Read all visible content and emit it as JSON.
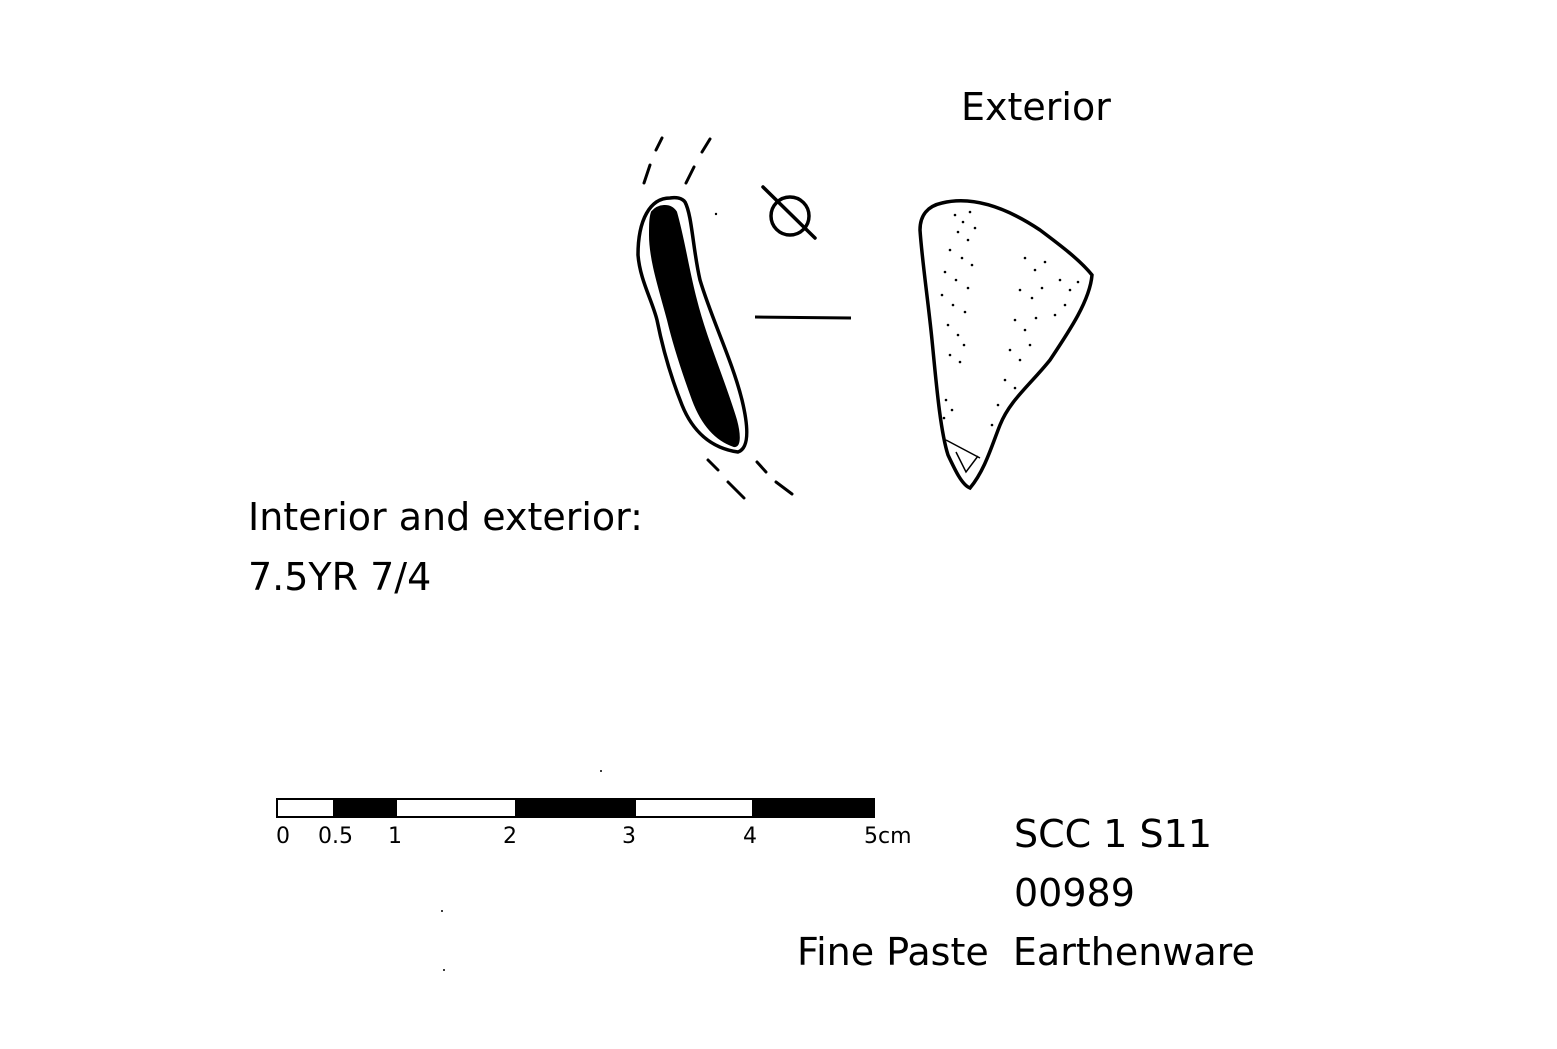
{
  "labels": {
    "exterior": "Exterior",
    "colour_heading": "Interior and exterior:",
    "colour_value": "7.5YR 7/4"
  },
  "scale_bar": {
    "ticks": [
      "0",
      "0.5",
      "1",
      "2",
      "3",
      "4",
      "5cm"
    ]
  },
  "catalog": {
    "site": "SCC 1 S11",
    "number": "00989",
    "ware": "Fine Paste  Earthenware"
  },
  "colors": {
    "ink": "#000000",
    "paper": "#ffffff"
  }
}
